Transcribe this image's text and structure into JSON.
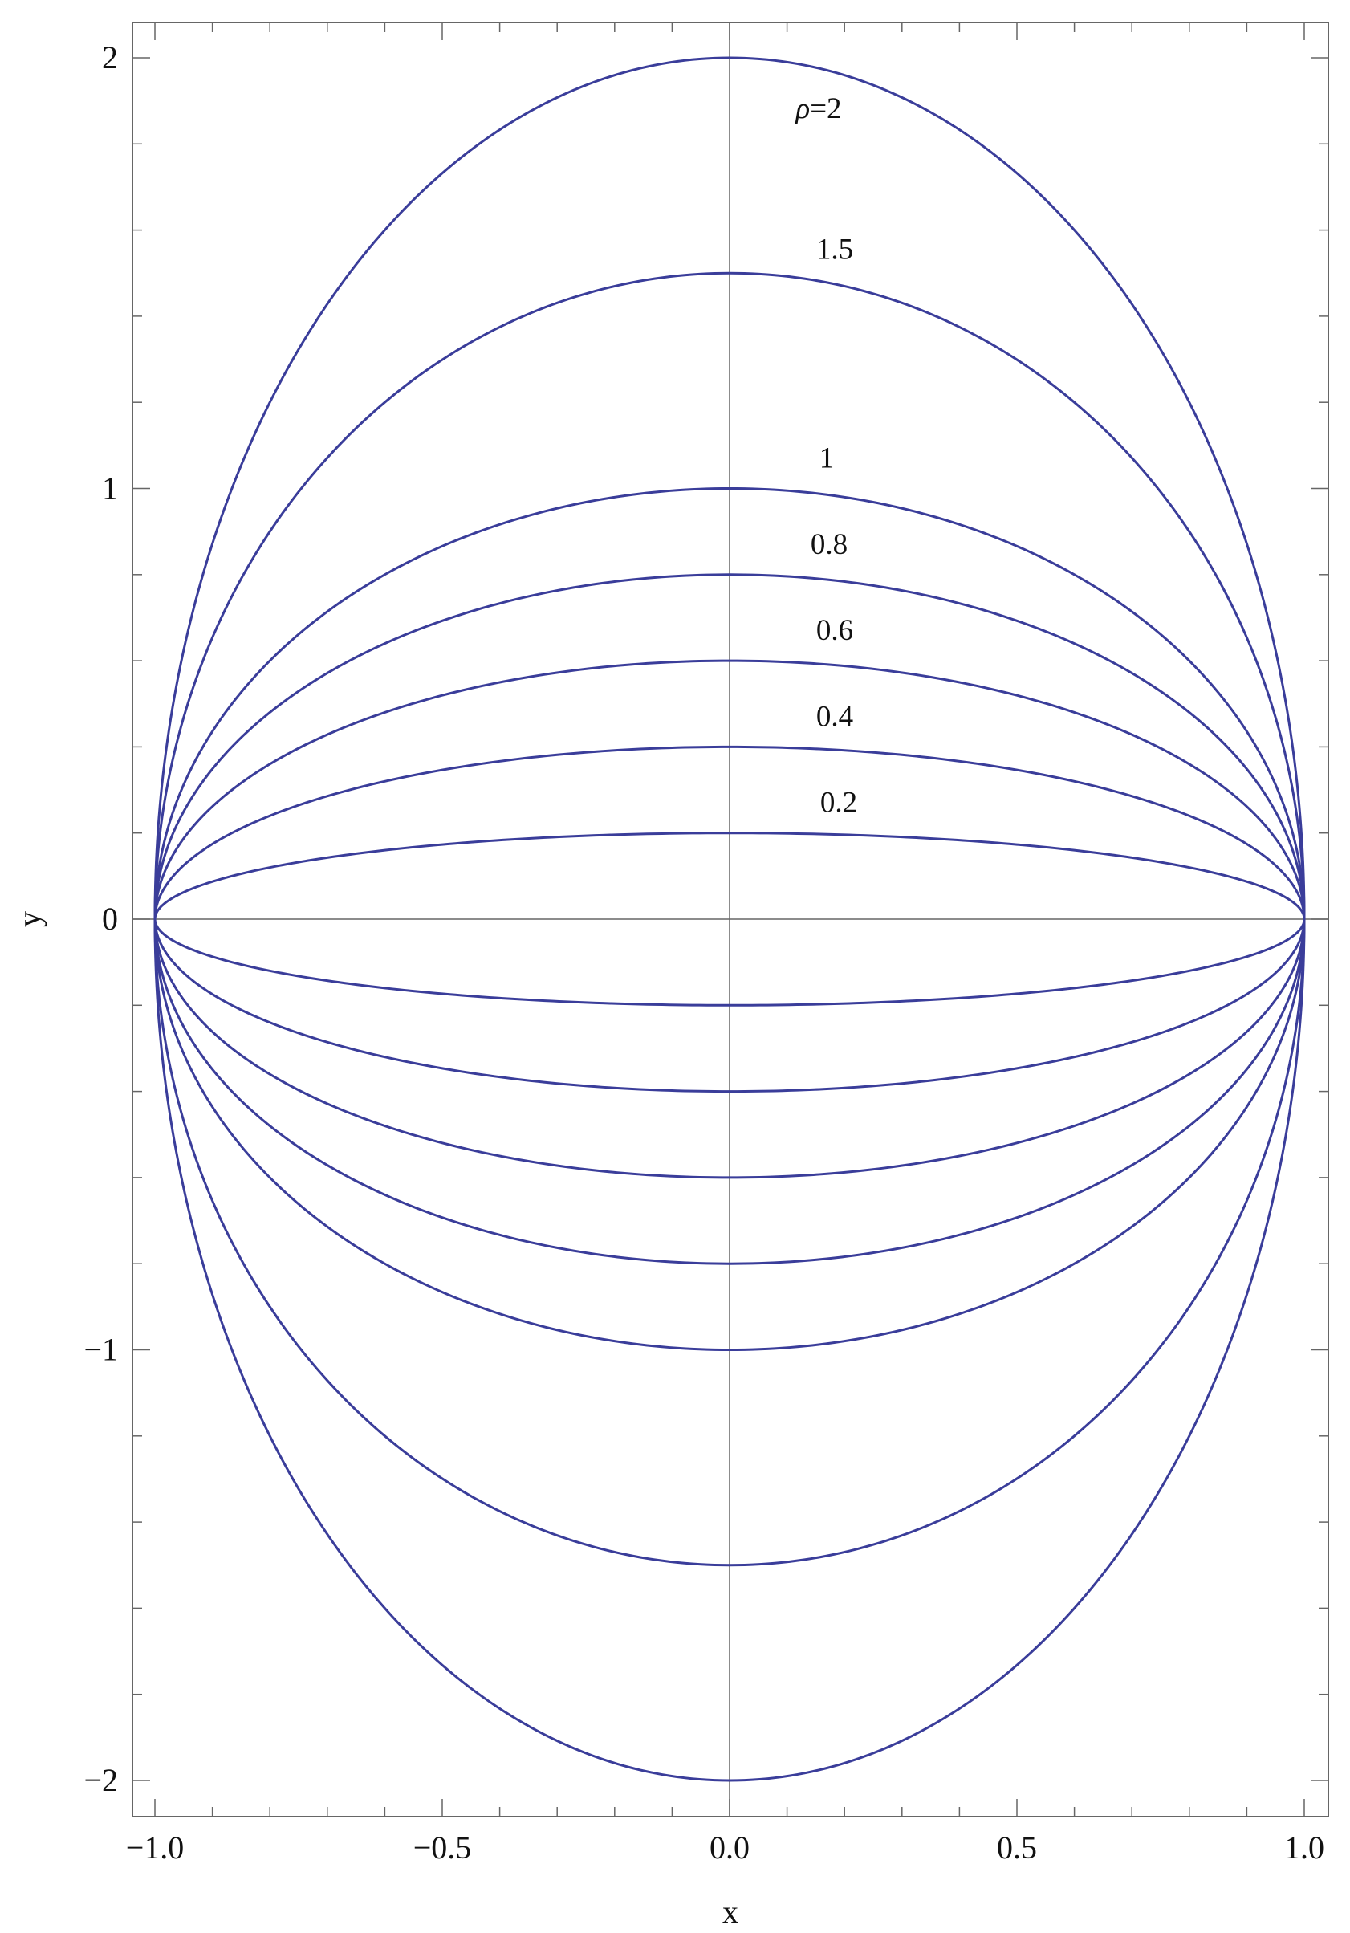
{
  "chart_data": {
    "type": "line",
    "title": "",
    "xlabel": "x",
    "ylabel": "y",
    "xlim": [
      -1.0,
      1.0
    ],
    "ylim": [
      -2.0,
      2.0
    ],
    "x_ticks": [
      -1.0,
      -0.5,
      0.0,
      0.5,
      1.0
    ],
    "x_tick_labels": [
      "−1.0",
      "−0.5",
      "0.0",
      "0.5",
      "1.0"
    ],
    "y_ticks": [
      -2,
      -1,
      0,
      1,
      2
    ],
    "y_tick_labels": [
      "−2",
      "−1",
      "0",
      "1",
      "2"
    ],
    "grid": false,
    "legend": "none",
    "curve_color": "#3a3d9a",
    "curve_shape": "semi-ellipse y = ±ρ·sqrt(1 − x²)",
    "series": [
      {
        "rho": 0.2,
        "label": "0.2",
        "peak_y": 0.2,
        "trough_y": -0.2
      },
      {
        "rho": 0.4,
        "label": "0.4",
        "peak_y": 0.4,
        "trough_y": -0.4
      },
      {
        "rho": 0.6,
        "label": "0.6",
        "peak_y": 0.6,
        "trough_y": -0.6
      },
      {
        "rho": 0.8,
        "label": "0.8",
        "peak_y": 0.8,
        "trough_y": -0.8
      },
      {
        "rho": 1.0,
        "label": "1",
        "peak_y": 1.0,
        "trough_y": -1.0
      },
      {
        "rho": 1.5,
        "label": "1.5",
        "peak_y": 1.5,
        "trough_y": -1.5
      },
      {
        "rho": 2.0,
        "label": "ρ=2",
        "peak_y": 2.0,
        "trough_y": -2.0
      }
    ]
  }
}
